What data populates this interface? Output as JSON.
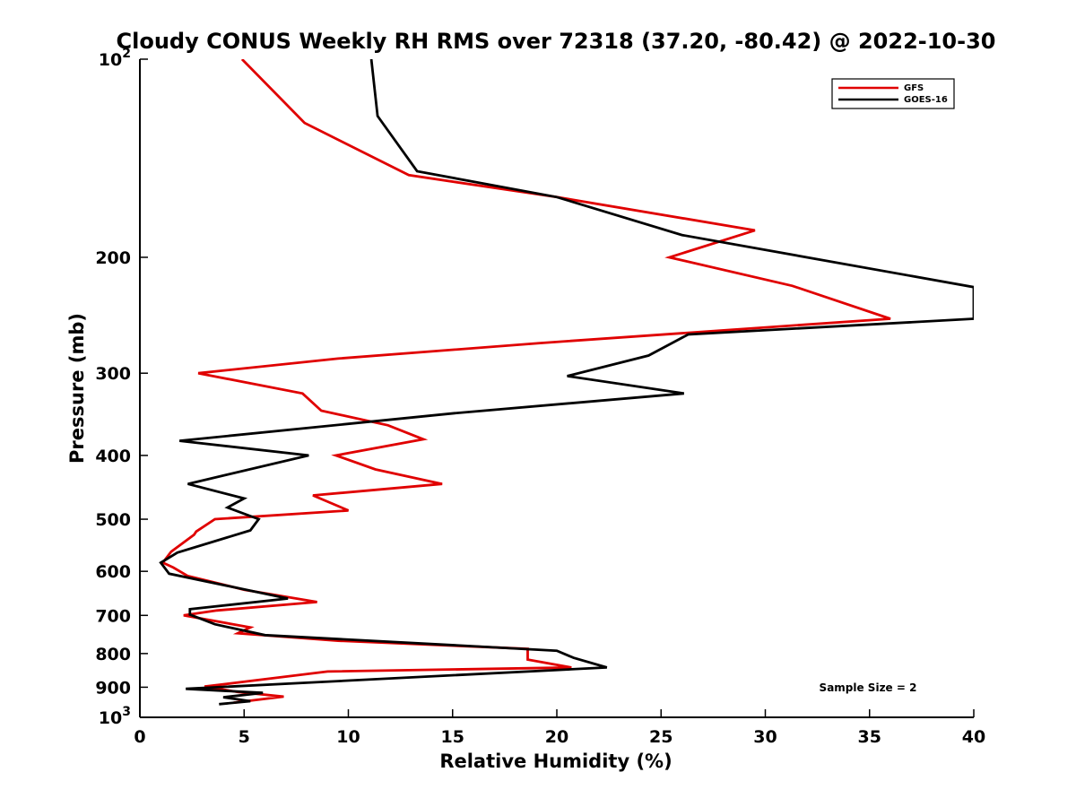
{
  "chart_data": {
    "type": "line",
    "title": "Cloudy CONUS Weekly RH RMS over 72318 (37.20, -80.42) @ 2022-10-30",
    "xlabel": "Relative Humidity (%)",
    "ylabel": "Pressure (mb)",
    "xlim": [
      0,
      40
    ],
    "ylim": [
      100,
      1000
    ],
    "y_scale": "log",
    "y_direction": "reversed",
    "x_ticks": [
      0,
      5,
      10,
      15,
      20,
      25,
      30,
      35,
      40
    ],
    "y_ticks": [
      {
        "value": 100,
        "base": "10",
        "exp": "2"
      },
      {
        "value": 200,
        "label": "200"
      },
      {
        "value": 300,
        "label": "300"
      },
      {
        "value": 400,
        "label": "400"
      },
      {
        "value": 500,
        "label": "500"
      },
      {
        "value": 600,
        "label": "600"
      },
      {
        "value": 700,
        "label": "700"
      },
      {
        "value": 800,
        "label": "800"
      },
      {
        "value": 900,
        "label": "900"
      },
      {
        "value": 1000,
        "base": "10",
        "exp": "3"
      }
    ],
    "legend_position": "top-right",
    "annotation": "Sample Size = 2",
    "series": [
      {
        "name": "GFS",
        "color": "#e00000",
        "points": [
          [
            4.9,
            100
          ],
          [
            7.9,
            125
          ],
          [
            12.9,
            150
          ],
          [
            20.0,
            162
          ],
          [
            29.5,
            182
          ],
          [
            25.4,
            200
          ],
          [
            31.3,
            221
          ],
          [
            36.0,
            248
          ],
          [
            19.2,
            270
          ],
          [
            9.5,
            285
          ],
          [
            2.8,
            300
          ],
          [
            7.8,
            322
          ],
          [
            8.7,
            342
          ],
          [
            11.9,
            360
          ],
          [
            13.6,
            378
          ],
          [
            9.4,
            400
          ],
          [
            11.3,
            420
          ],
          [
            14.5,
            442
          ],
          [
            8.3,
            460
          ],
          [
            10.0,
            485
          ],
          [
            3.6,
            500
          ],
          [
            2.7,
            522
          ],
          [
            2.6,
            528
          ],
          [
            1.5,
            560
          ],
          [
            1.1,
            582
          ],
          [
            1.6,
            592
          ],
          [
            2.3,
            610
          ],
          [
            5.0,
            640
          ],
          [
            8.5,
            668
          ],
          [
            3.7,
            688
          ],
          [
            2.1,
            700
          ],
          [
            5.3,
            730
          ],
          [
            4.7,
            745
          ],
          [
            9.5,
            765
          ],
          [
            18.6,
            787
          ],
          [
            18.6,
            817
          ],
          [
            20.7,
            840
          ],
          [
            9.0,
            852
          ],
          [
            3.1,
            898
          ],
          [
            4.7,
            915
          ],
          [
            6.9,
            930
          ],
          [
            4.5,
            950
          ]
        ]
      },
      {
        "name": "GOES-16",
        "color": "#000000",
        "points": [
          [
            11.1,
            100
          ],
          [
            11.4,
            122
          ],
          [
            13.3,
            148
          ],
          [
            20.0,
            162
          ],
          [
            26.0,
            185
          ],
          [
            40.0,
            222
          ],
          [
            40.0,
            248
          ],
          [
            26.3,
            262
          ],
          [
            24.4,
            282
          ],
          [
            20.5,
            303
          ],
          [
            26.1,
            322
          ],
          [
            15.1,
            345
          ],
          [
            1.9,
            380
          ],
          [
            8.1,
            400
          ],
          [
            2.3,
            442
          ],
          [
            5.0,
            465
          ],
          [
            4.2,
            480
          ],
          [
            5.7,
            500
          ],
          [
            5.3,
            520
          ],
          [
            1.8,
            562
          ],
          [
            1.0,
            582
          ],
          [
            1.4,
            605
          ],
          [
            7.1,
            660
          ],
          [
            2.4,
            685
          ],
          [
            2.4,
            698
          ],
          [
            3.6,
            722
          ],
          [
            6.0,
            750
          ],
          [
            20.0,
            792
          ],
          [
            20.8,
            812
          ],
          [
            22.4,
            840
          ],
          [
            2.2,
            905
          ],
          [
            5.9,
            918
          ],
          [
            4.0,
            932
          ],
          [
            5.3,
            945
          ],
          [
            3.8,
            955
          ]
        ]
      }
    ]
  }
}
